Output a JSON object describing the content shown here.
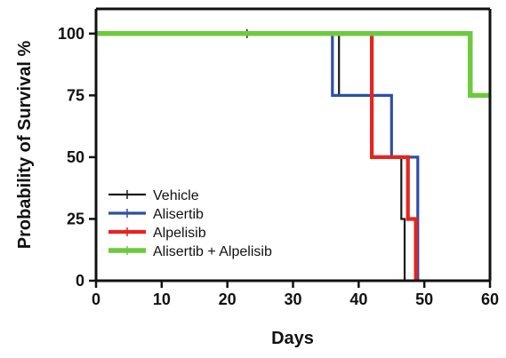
{
  "chart_data": {
    "type": "line",
    "subtype": "kaplan-meier-step",
    "xlabel": "Days",
    "ylabel": "Probability of Survival %",
    "xlim": [
      0,
      60
    ],
    "ylim": [
      0,
      110
    ],
    "xticks": [
      0,
      10,
      20,
      30,
      40,
      50,
      60
    ],
    "yticks": [
      0,
      25,
      50,
      75,
      100
    ],
    "grid": false,
    "legend_position": "lower-left",
    "series": [
      {
        "name": "Vehicle",
        "color": "#1a1a1a",
        "steps": [
          [
            0,
            100
          ],
          [
            37,
            75
          ],
          [
            42,
            50
          ],
          [
            46.5,
            25
          ],
          [
            47,
            0
          ]
        ],
        "censored": [
          [
            23,
            100
          ]
        ]
      },
      {
        "name": "Alisertib",
        "color": "#2e4ea8",
        "steps": [
          [
            0,
            100
          ],
          [
            36,
            75
          ],
          [
            45,
            50
          ],
          [
            49,
            0
          ]
        ],
        "censored": []
      },
      {
        "name": "Alpelisib",
        "color": "#e8231d",
        "steps": [
          [
            0,
            100
          ],
          [
            42,
            50
          ],
          [
            47.5,
            25
          ],
          [
            48.7,
            0
          ]
        ],
        "censored": []
      },
      {
        "name": "Alisertib + Alpelisib",
        "color": "#6ec93e",
        "steps": [
          [
            0,
            100
          ],
          [
            57,
            75
          ],
          [
            60,
            75
          ]
        ],
        "censored": []
      }
    ]
  }
}
